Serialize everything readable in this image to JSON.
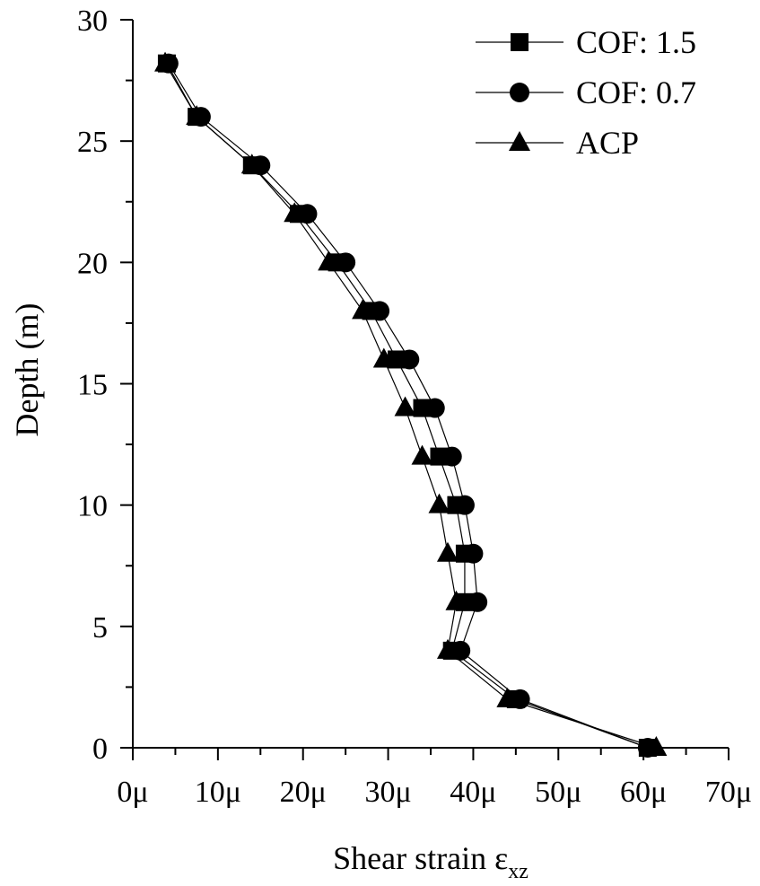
{
  "chart_data": {
    "type": "scatter",
    "xlabel": "Shear strain ε",
    "xlabel_sub": "xz",
    "ylabel": "Depth (m)",
    "xlim": [
      0,
      70
    ],
    "ylim": [
      0,
      30
    ],
    "x_ticks": [
      0,
      10,
      20,
      30,
      40,
      50,
      60,
      70
    ],
    "x_tick_labels": [
      "0μ",
      "10μ",
      "20μ",
      "30μ",
      "40μ",
      "50μ",
      "60μ",
      "70μ"
    ],
    "y_ticks": [
      0,
      5,
      10,
      15,
      20,
      25,
      30
    ],
    "y_tick_labels": [
      "0",
      "5",
      "10",
      "15",
      "20",
      "25",
      "30"
    ],
    "x_unit": "μ",
    "grid": false,
    "legend_position": "top-right",
    "series": [
      {
        "name": "COF: 1.5",
        "marker": "square",
        "points": [
          [
            60.5,
            0
          ],
          [
            45,
            2
          ],
          [
            37.5,
            4
          ],
          [
            39,
            6
          ],
          [
            39,
            8
          ],
          [
            38,
            10
          ],
          [
            36,
            12
          ],
          [
            34,
            14
          ],
          [
            31,
            16
          ],
          [
            28,
            18
          ],
          [
            24,
            20
          ],
          [
            19.5,
            22
          ],
          [
            14,
            24
          ],
          [
            7.5,
            26
          ],
          [
            4,
            28.2
          ]
        ]
      },
      {
        "name": "COF: 0.7",
        "marker": "circle",
        "points": [
          [
            60.5,
            0
          ],
          [
            45.5,
            2
          ],
          [
            38.5,
            4
          ],
          [
            40.5,
            6
          ],
          [
            40,
            8
          ],
          [
            39,
            10
          ],
          [
            37.5,
            12
          ],
          [
            35.5,
            14
          ],
          [
            32.5,
            16
          ],
          [
            29,
            18
          ],
          [
            25,
            20
          ],
          [
            20.5,
            22
          ],
          [
            15,
            24
          ],
          [
            8,
            26
          ],
          [
            4.2,
            28.2
          ]
        ]
      },
      {
        "name": "ACP",
        "marker": "triangle",
        "points": [
          [
            61.5,
            0
          ],
          [
            44,
            2
          ],
          [
            37,
            4
          ],
          [
            38,
            6
          ],
          [
            37,
            8
          ],
          [
            36,
            10
          ],
          [
            34,
            12
          ],
          [
            32,
            14
          ],
          [
            29.5,
            16
          ],
          [
            27,
            18
          ],
          [
            23,
            20
          ],
          [
            19,
            22
          ],
          [
            14,
            24
          ],
          [
            7.5,
            26
          ],
          [
            3.8,
            28.2
          ]
        ]
      }
    ]
  }
}
